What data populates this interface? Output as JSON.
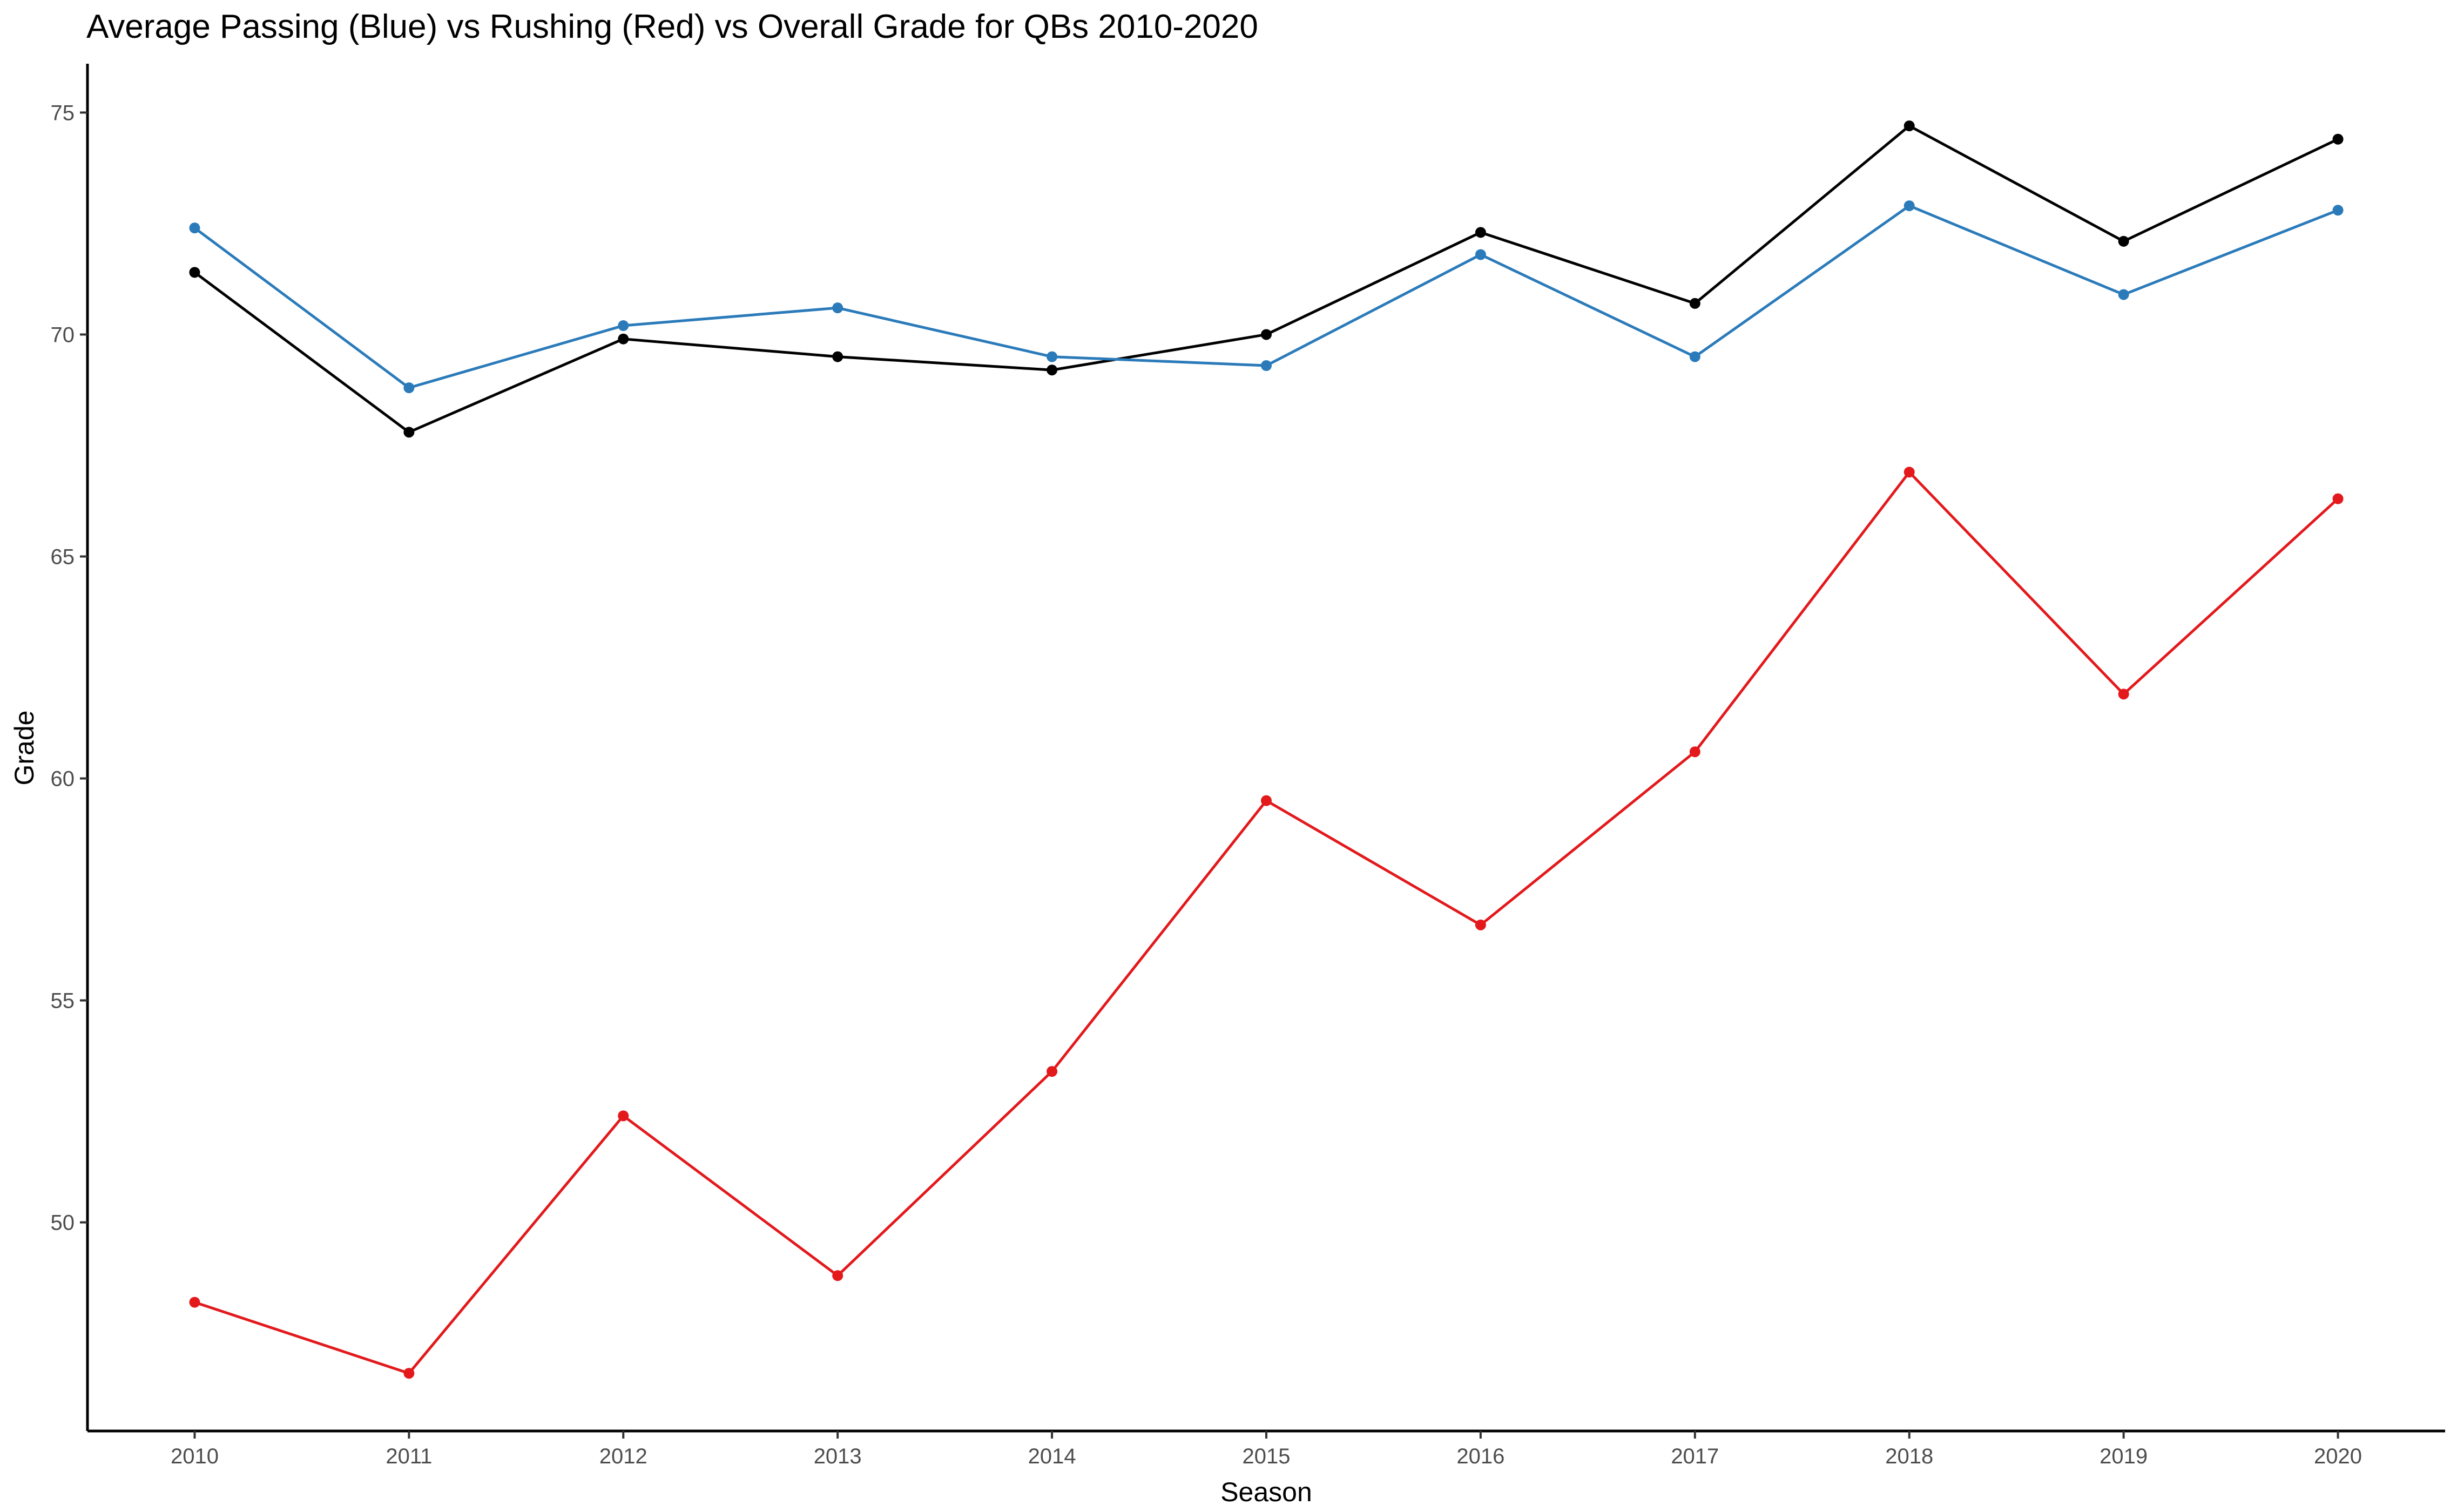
{
  "chart_data": {
    "type": "line",
    "title": "Average Passing (Blue) vs Rushing (Red) vs Overall Grade for QBs 2010-2020",
    "xlabel": "Season",
    "ylabel": "Grade",
    "x": [
      2010,
      2011,
      2012,
      2013,
      2014,
      2015,
      2016,
      2017,
      2018,
      2019,
      2020
    ],
    "xlim": [
      2009.5,
      2020.5
    ],
    "ylim": [
      45.3,
      76.1
    ],
    "x_ticks": [
      "2010",
      "2011",
      "2012",
      "2013",
      "2014",
      "2015",
      "2016",
      "2017",
      "2018",
      "2019",
      "2020"
    ],
    "y_ticks": [
      "50",
      "55",
      "60",
      "65",
      "70",
      "75"
    ],
    "grid": false,
    "legend": "none",
    "series": [
      {
        "color": "#000000",
        "values": [
          71.4,
          67.8,
          69.9,
          69.5,
          69.2,
          70.0,
          72.3,
          70.7,
          74.7,
          72.1,
          74.4
        ]
      },
      {
        "color": "#2b7bba",
        "values": [
          72.4,
          68.8,
          70.2,
          70.6,
          69.5,
          69.3,
          71.8,
          69.5,
          72.9,
          70.9,
          72.8
        ]
      },
      {
        "color": "#e3191c",
        "values": [
          48.2,
          46.6,
          52.4,
          48.8,
          53.4,
          59.5,
          56.7,
          60.6,
          66.9,
          61.9,
          66.3
        ]
      }
    ]
  }
}
